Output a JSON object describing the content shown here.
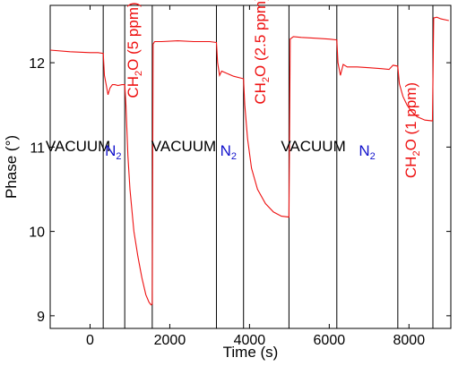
{
  "chart_data": {
    "type": "line",
    "title": "",
    "xlabel": "Time (s)",
    "ylabel": "Phase (°)",
    "xlim": [
      -1000,
      9050
    ],
    "ylim": [
      8.85,
      12.68
    ],
    "xticks": [
      0,
      2000,
      4000,
      6000,
      8000
    ],
    "yticks": [
      9,
      10,
      11,
      12
    ],
    "series_color": "#ee1111",
    "boundaries": [
      330,
      870,
      1560,
      3170,
      3850,
      4990,
      6190,
      7720,
      8600
    ],
    "annotations": [
      {
        "text": "VACUUM",
        "x": -300,
        "y": 10.95,
        "vertical": false,
        "color": "#000000"
      },
      {
        "text": "N",
        "sub": "2",
        "x": 580,
        "y": 10.9,
        "vertical": false,
        "color": "#1111cc"
      },
      {
        "text": "CH",
        "sub": "2",
        "tail": "O (5 ppm)",
        "x": 1200,
        "y": 12.15,
        "vertical": true,
        "color": "#ee1111"
      },
      {
        "text": "VACUUM",
        "x": 2350,
        "y": 10.95,
        "vertical": false,
        "color": "#000000"
      },
      {
        "text": "N",
        "sub": "2",
        "x": 3470,
        "y": 10.9,
        "vertical": false,
        "color": "#1111cc"
      },
      {
        "text": "CH",
        "sub": "2",
        "tail": "O (2.5 ppm)",
        "x": 4400,
        "y": 12.15,
        "vertical": true,
        "color": "#ee1111"
      },
      {
        "text": "VACUUM",
        "x": 5600,
        "y": 10.95,
        "vertical": false,
        "color": "#000000"
      },
      {
        "text": "N",
        "sub": "2",
        "x": 6950,
        "y": 10.9,
        "vertical": false,
        "color": "#1111cc"
      },
      {
        "text": "CH",
        "sub": "2",
        "tail": "O (1 ppm)",
        "x": 8170,
        "y": 11.2,
        "vertical": true,
        "color": "#ee1111"
      }
    ],
    "series": [
      {
        "x": [
          -1000,
          -500,
          0,
          200,
          330,
          360,
          400,
          450,
          500,
          560,
          620,
          700,
          800,
          870,
          900,
          950,
          1000,
          1100,
          1200,
          1300,
          1400,
          1480,
          1530,
          1560,
          1580,
          1620,
          1800,
          2200,
          2600,
          3000,
          3170,
          3200,
          3250,
          3300,
          3400,
          3600,
          3850,
          3880,
          3950,
          4050,
          4200,
          4400,
          4600,
          4800,
          4990,
          5020,
          5100,
          5300,
          5700,
          6000,
          6190,
          6220,
          6280,
          6350,
          6450,
          6700,
          7000,
          7300,
          7500,
          7600,
          7720,
          7760,
          7850,
          7950,
          8050,
          8200,
          8400,
          8590,
          8620,
          8700,
          8800,
          9000
        ],
        "y": [
          12.15,
          12.13,
          12.12,
          12.12,
          12.11,
          11.85,
          11.75,
          11.62,
          11.7,
          11.74,
          11.74,
          11.73,
          11.74,
          11.74,
          11.5,
          10.9,
          10.5,
          10.0,
          9.7,
          9.45,
          9.25,
          9.16,
          9.13,
          9.14,
          12.22,
          12.25,
          12.25,
          12.26,
          12.25,
          12.25,
          12.24,
          12.0,
          11.85,
          11.9,
          11.88,
          11.84,
          11.81,
          11.5,
          11.1,
          10.75,
          10.5,
          10.33,
          10.23,
          10.18,
          10.17,
          12.28,
          12.31,
          12.3,
          12.29,
          12.28,
          12.27,
          12.0,
          11.85,
          11.98,
          11.95,
          11.95,
          11.94,
          11.93,
          11.92,
          11.97,
          11.96,
          11.75,
          11.6,
          11.5,
          11.43,
          11.36,
          11.32,
          11.31,
          12.53,
          12.54,
          12.52,
          12.5
        ]
      }
    ]
  }
}
